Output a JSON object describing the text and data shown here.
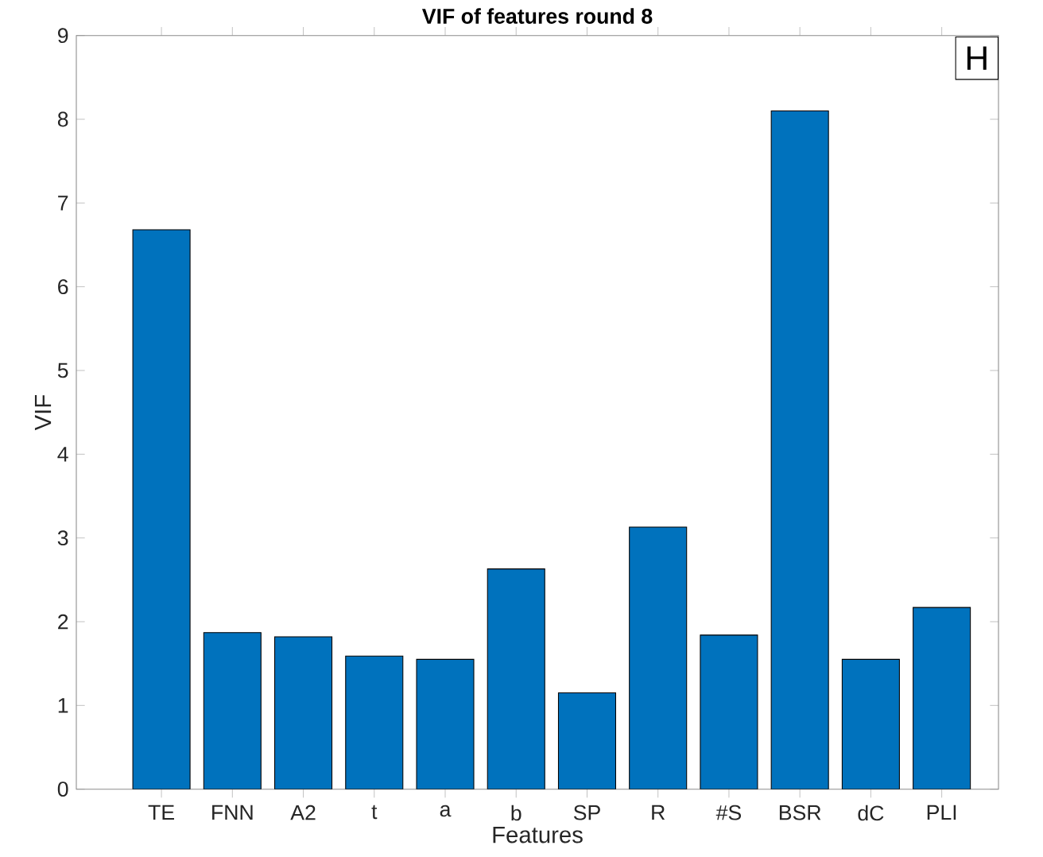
{
  "chart_data": {
    "type": "bar",
    "title": "VIF of features round 8",
    "xlabel": "Features",
    "ylabel": "VIF",
    "categories": [
      "TE",
      "FNN",
      "A2",
      "t",
      "a",
      "b",
      "SP",
      "R",
      "#S",
      "BSR",
      "dC",
      "PLI"
    ],
    "values": [
      6.68,
      1.87,
      1.82,
      1.59,
      1.55,
      2.63,
      1.15,
      3.13,
      1.84,
      8.1,
      1.55,
      2.17
    ],
    "color": "#0072bd",
    "ylim": [
      0,
      9
    ],
    "yticks": [
      0,
      1,
      2,
      3,
      4,
      5,
      6,
      7,
      8,
      9
    ],
    "annotations": [
      "H"
    ]
  }
}
